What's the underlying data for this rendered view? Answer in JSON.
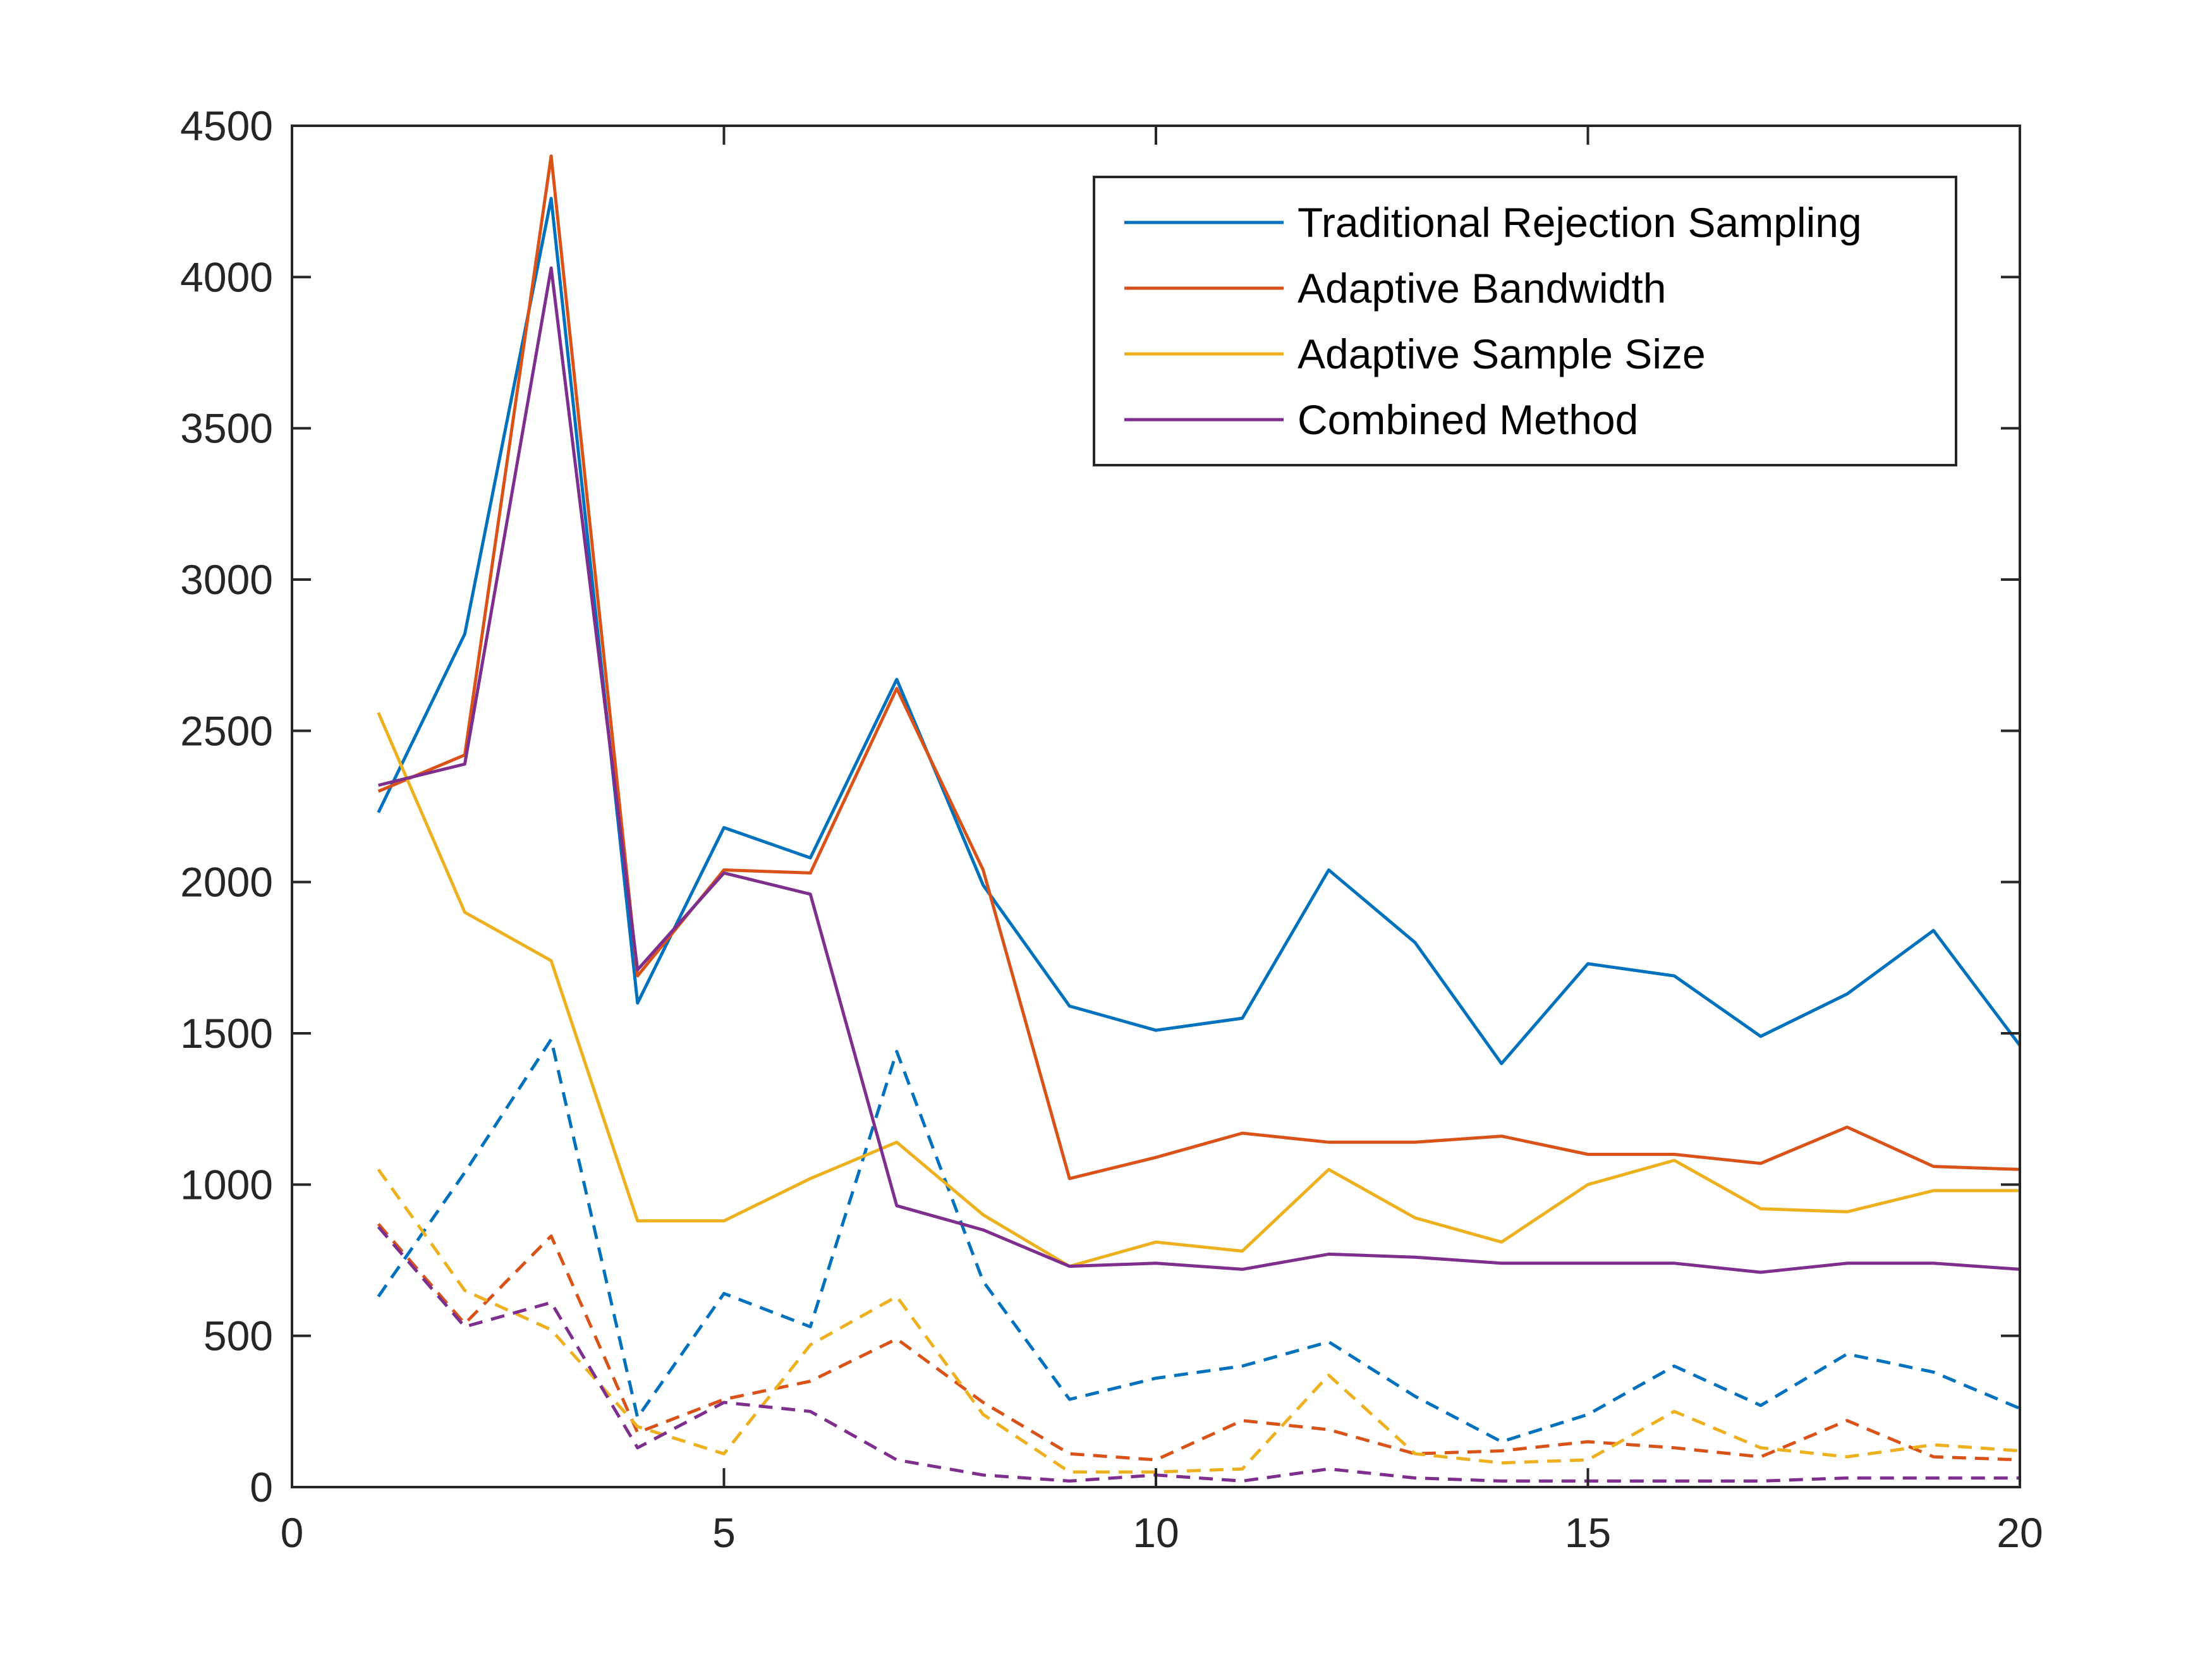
{
  "chart_data": {
    "type": "line",
    "title": "",
    "xlabel": "",
    "ylabel": "",
    "xlim": [
      0,
      20
    ],
    "ylim": [
      0,
      4500
    ],
    "xticks": [
      0,
      5,
      10,
      15,
      20
    ],
    "yticks": [
      0,
      500,
      1000,
      1500,
      2000,
      2500,
      3000,
      3500,
      4000,
      4500
    ],
    "grid": false,
    "legend_position": "top-right",
    "x": [
      1,
      2,
      3,
      4,
      5,
      6,
      7,
      8,
      9,
      10,
      11,
      12,
      13,
      14,
      15,
      16,
      17,
      18,
      19,
      20
    ],
    "series": [
      {
        "name": "Traditional Rejection Sampling",
        "color": "#0072BD",
        "style": "solid",
        "values": [
          2230,
          2820,
          4260,
          1600,
          2180,
          2080,
          2670,
          1990,
          1590,
          1510,
          1550,
          2040,
          1800,
          1400,
          1730,
          1690,
          1490,
          1630,
          1840,
          1460
        ]
      },
      {
        "name": "Adaptive Bandwidth",
        "color": "#D95319",
        "style": "solid",
        "values": [
          2300,
          2420,
          4400,
          1690,
          2040,
          2030,
          2640,
          2040,
          1020,
          1090,
          1170,
          1140,
          1140,
          1160,
          1100,
          1100,
          1070,
          1190,
          1060,
          1050
        ]
      },
      {
        "name": "Adaptive Sample Size",
        "color": "#EDB120",
        "style": "solid",
        "values": [
          2560,
          1900,
          1740,
          880,
          880,
          1020,
          1140,
          900,
          730,
          810,
          780,
          1050,
          890,
          810,
          1000,
          1080,
          920,
          910,
          980,
          980
        ]
      },
      {
        "name": "Combined Method",
        "color": "#7E2F8E",
        "style": "solid",
        "values": [
          2320,
          2390,
          4030,
          1710,
          2030,
          1960,
          930,
          850,
          730,
          740,
          720,
          770,
          760,
          740,
          740,
          740,
          710,
          740,
          740,
          720
        ]
      },
      {
        "color": "#0072BD",
        "style": "dashed",
        "values": [
          630,
          1040,
          1480,
          230,
          640,
          530,
          1440,
          680,
          290,
          360,
          400,
          480,
          300,
          150,
          240,
          400,
          270,
          440,
          380,
          260
        ]
      },
      {
        "color": "#D95319",
        "style": "dashed",
        "values": [
          870,
          540,
          830,
          180,
          290,
          350,
          490,
          280,
          110,
          90,
          220,
          190,
          110,
          120,
          150,
          130,
          100,
          220,
          100,
          90
        ]
      },
      {
        "color": "#EDB120",
        "style": "dashed",
        "values": [
          1050,
          650,
          520,
          200,
          110,
          470,
          630,
          240,
          50,
          50,
          60,
          370,
          110,
          80,
          90,
          250,
          130,
          100,
          140,
          120
        ]
      },
      {
        "color": "#7E2F8E",
        "style": "dashed",
        "values": [
          860,
          530,
          610,
          130,
          280,
          250,
          90,
          40,
          20,
          40,
          20,
          60,
          30,
          20,
          20,
          20,
          20,
          30,
          30,
          30
        ]
      }
    ]
  }
}
